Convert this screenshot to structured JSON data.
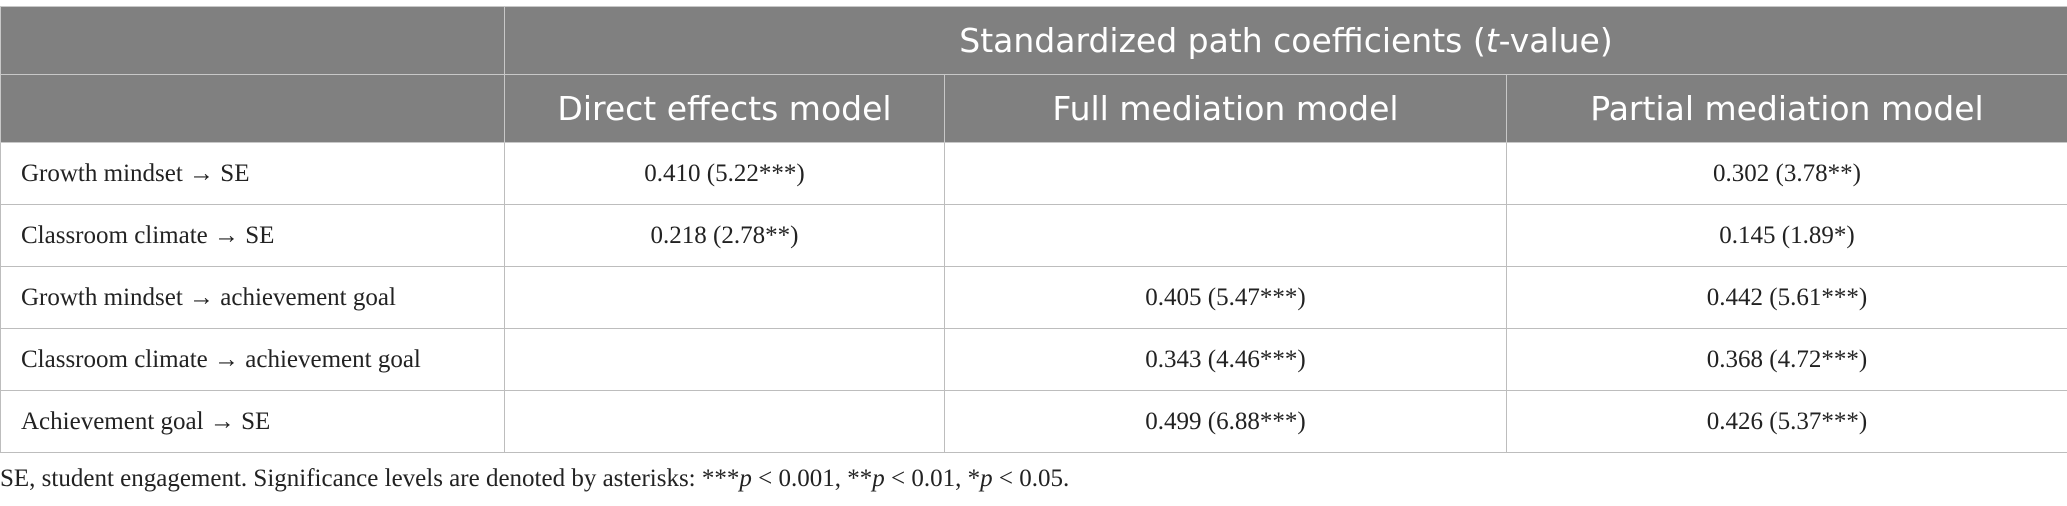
{
  "table": {
    "span_header": [
      "Standardized path coefficients (",
      "t",
      "-value)"
    ],
    "columns": [
      "Direct effects model",
      "Full mediation model",
      "Partial mediation model"
    ],
    "rows": [
      [
        "Growth mindset → SE",
        "0.410 (5.22***)",
        null,
        "0.302 (3.78**)"
      ],
      [
        "Classroom climate → SE",
        "0.218 (2.78**)",
        null,
        "0.145 (1.89*)"
      ],
      [
        "Growth mindset → achievement goal",
        null,
        "0.405 (5.47***)",
        "0.442 (5.61***)"
      ],
      [
        "Classroom climate → achievement goal",
        null,
        "0.343 (4.46***)",
        "0.368 (4.72***)"
      ],
      [
        "Achievement goal → SE",
        null,
        "0.499 (6.88***)",
        "0.426 (5.37***)"
      ]
    ]
  },
  "footnote": [
    "SE, student engagement. Significance levels are denoted by asterisks: ***",
    "p",
    " < 0.001, **",
    "p",
    " < 0.01, *",
    "p",
    " < 0.05."
  ]
}
